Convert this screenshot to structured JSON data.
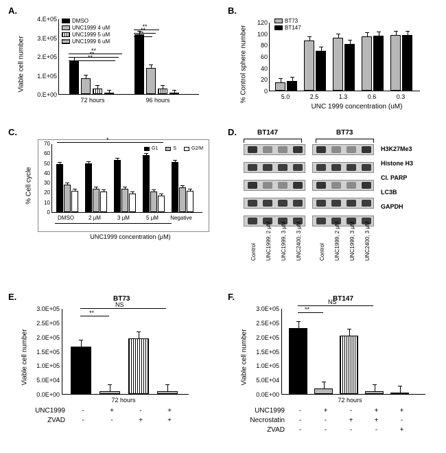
{
  "panelA": {
    "label": "A.",
    "ylabel": "Viable cell number",
    "ymax": 4.0,
    "yticks": [
      "0.E+00",
      "1.E+05",
      "2.E+05",
      "3.E+05",
      "4.E+05"
    ],
    "groups": [
      "72 hours",
      "96 hours"
    ],
    "legend": [
      "DMSO",
      "UNC1999 4 uM",
      "UNC1999 5 uM",
      "UNC1999 6 uM"
    ],
    "colors": [
      "#000000",
      "#b8b8b8",
      "#ffffff",
      "#ffffff"
    ],
    "patterns": [
      "solid",
      "solid",
      "vstripe",
      "hstripe"
    ],
    "values": [
      [
        1.8,
        0.85,
        0.3,
        0.05
      ],
      [
        3.15,
        1.4,
        0.3,
        0.05
      ]
    ],
    "sig": "**"
  },
  "panelB": {
    "label": "B.",
    "ylabel": "% Control sphere number",
    "xlabel": "UNC 1999 concentration (uM)",
    "ymax": 120,
    "yticks": [
      "0",
      "20",
      "40",
      "60",
      "80",
      "100",
      "120"
    ],
    "categories": [
      "5.0",
      "2.5",
      "1.3",
      "0.6",
      "0.3"
    ],
    "legend": [
      "BT73",
      "BT147"
    ],
    "colors": [
      "#b8b8b8",
      "#000000"
    ],
    "values": [
      [
        14,
        17
      ],
      [
        88,
        70
      ],
      [
        92,
        82
      ],
      [
        95,
        96
      ],
      [
        97,
        97
      ]
    ]
  },
  "panelC": {
    "label": "C.",
    "ylabel": "% Cell cycle",
    "xlabel": "UNC1999  concentration  (μM)",
    "ymax": 70,
    "yticks": [
      "0",
      "10",
      "20",
      "30",
      "40",
      "50",
      "60",
      "70"
    ],
    "categories": [
      "DMSO",
      "2 μM",
      "3 μM",
      "5 μM",
      "Negative"
    ],
    "legend": [
      "G1",
      "S",
      "G2/M"
    ],
    "colors": [
      "#000000",
      "#b8b8b8",
      "#ffffff"
    ],
    "values": [
      [
        49,
        28,
        22
      ],
      [
        50,
        24,
        21
      ],
      [
        53,
        24,
        19
      ],
      [
        58,
        21,
        17
      ],
      [
        51,
        25,
        22
      ]
    ],
    "sig": "*"
  },
  "panelD": {
    "label": "D.",
    "lines": [
      "BT147",
      "BT73"
    ],
    "bands": [
      "H3K27Me3",
      "Histone H3",
      "Cl. PARP",
      "LC3B",
      "GAPDH"
    ],
    "lanes": [
      "Control",
      "UNC1999, 2 μM",
      "UNC1999, 3 μM",
      "UNC2400, 3 μM"
    ]
  },
  "panelE": {
    "label": "E.",
    "title": "BT73",
    "ylabel": "Viable cell number",
    "ymax": 3.0,
    "yticks": [
      "0.0E+00",
      "5.0E+04",
      "1.0E+05",
      "1.5E+05",
      "2.0E+05",
      "2.5E+05",
      "3.0E+05"
    ],
    "xcat": "72 hours",
    "rows": [
      "UNC1999",
      "ZVAD"
    ],
    "states": [
      [
        "-",
        "+",
        "-",
        "+"
      ],
      [
        "-",
        "-",
        "+",
        "+"
      ]
    ],
    "colors": [
      "#000000",
      "#b8b8b8",
      "#ffffff",
      "#b8b8b8"
    ],
    "patterns": [
      "solid",
      "solid",
      "vstripe",
      "solid"
    ],
    "values": [
      1.65,
      0.1,
      1.95,
      0.1
    ],
    "sig": [
      "**",
      "NS"
    ]
  },
  "panelF": {
    "label": "F.",
    "title": "BT147",
    "ylabel": "Viable cell number",
    "ymax": 3.0,
    "yticks": [
      "0.0E+00",
      "5.0E+04",
      "1.0E+05",
      "1.5E+05",
      "2.0E+05",
      "2.5E+05",
      "3.0E+05"
    ],
    "xcat": "72 hours",
    "rows": [
      "UNC1999",
      "Necrostatin",
      "ZVAD"
    ],
    "states": [
      [
        "-",
        "+",
        "-",
        "+",
        "+"
      ],
      [
        "-",
        "-",
        "+",
        "+",
        "-"
      ],
      [
        "-",
        "-",
        "-",
        "-",
        "+"
      ]
    ],
    "colors": [
      "#000000",
      "#b8b8b8",
      "#ffffff",
      "#b8b8b8",
      "#b8b8b8"
    ],
    "patterns": [
      "solid",
      "solid",
      "vstripe",
      "solid",
      "solid"
    ],
    "values": [
      2.3,
      0.2,
      2.05,
      0.1,
      0.05
    ],
    "sig": [
      "**",
      "NS"
    ]
  }
}
